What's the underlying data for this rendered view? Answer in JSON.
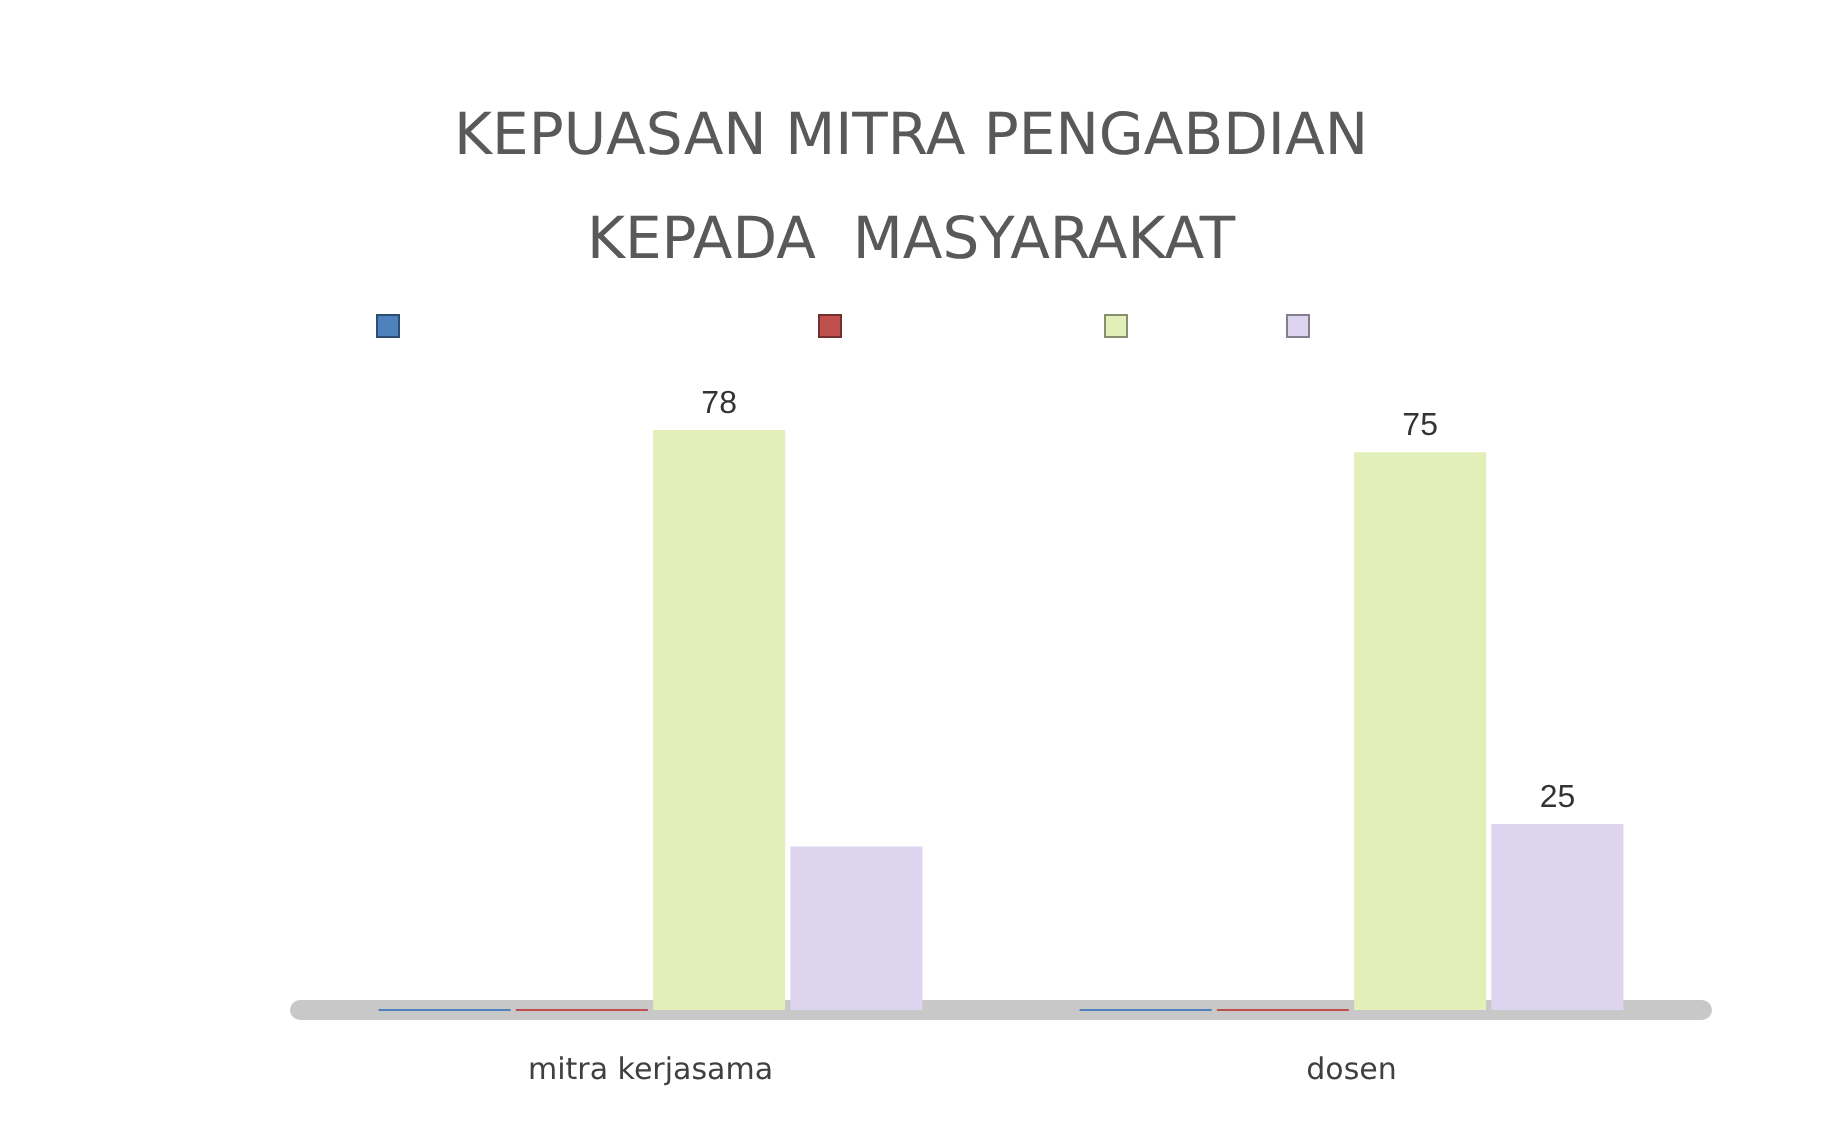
{
  "chart_data": {
    "type": "bar",
    "title": "KEPUASAN MITRA PENGABDIAN\nKEPADA  MASYARAKAT",
    "categories": [
      "mitra kerjasama",
      "dosen"
    ],
    "series": [
      {
        "color": "#4f81bd",
        "values": [
          0,
          0
        ]
      },
      {
        "color": "#c0504d",
        "values": [
          0,
          0
        ]
      },
      {
        "color": "#e3efb8",
        "values": [
          78,
          75
        ],
        "value_labels": [
          "78",
          "75"
        ]
      },
      {
        "color": "#ddd5ef",
        "values": [
          22,
          25
        ],
        "value_labels": [
          null,
          "25"
        ]
      }
    ]
  }
}
